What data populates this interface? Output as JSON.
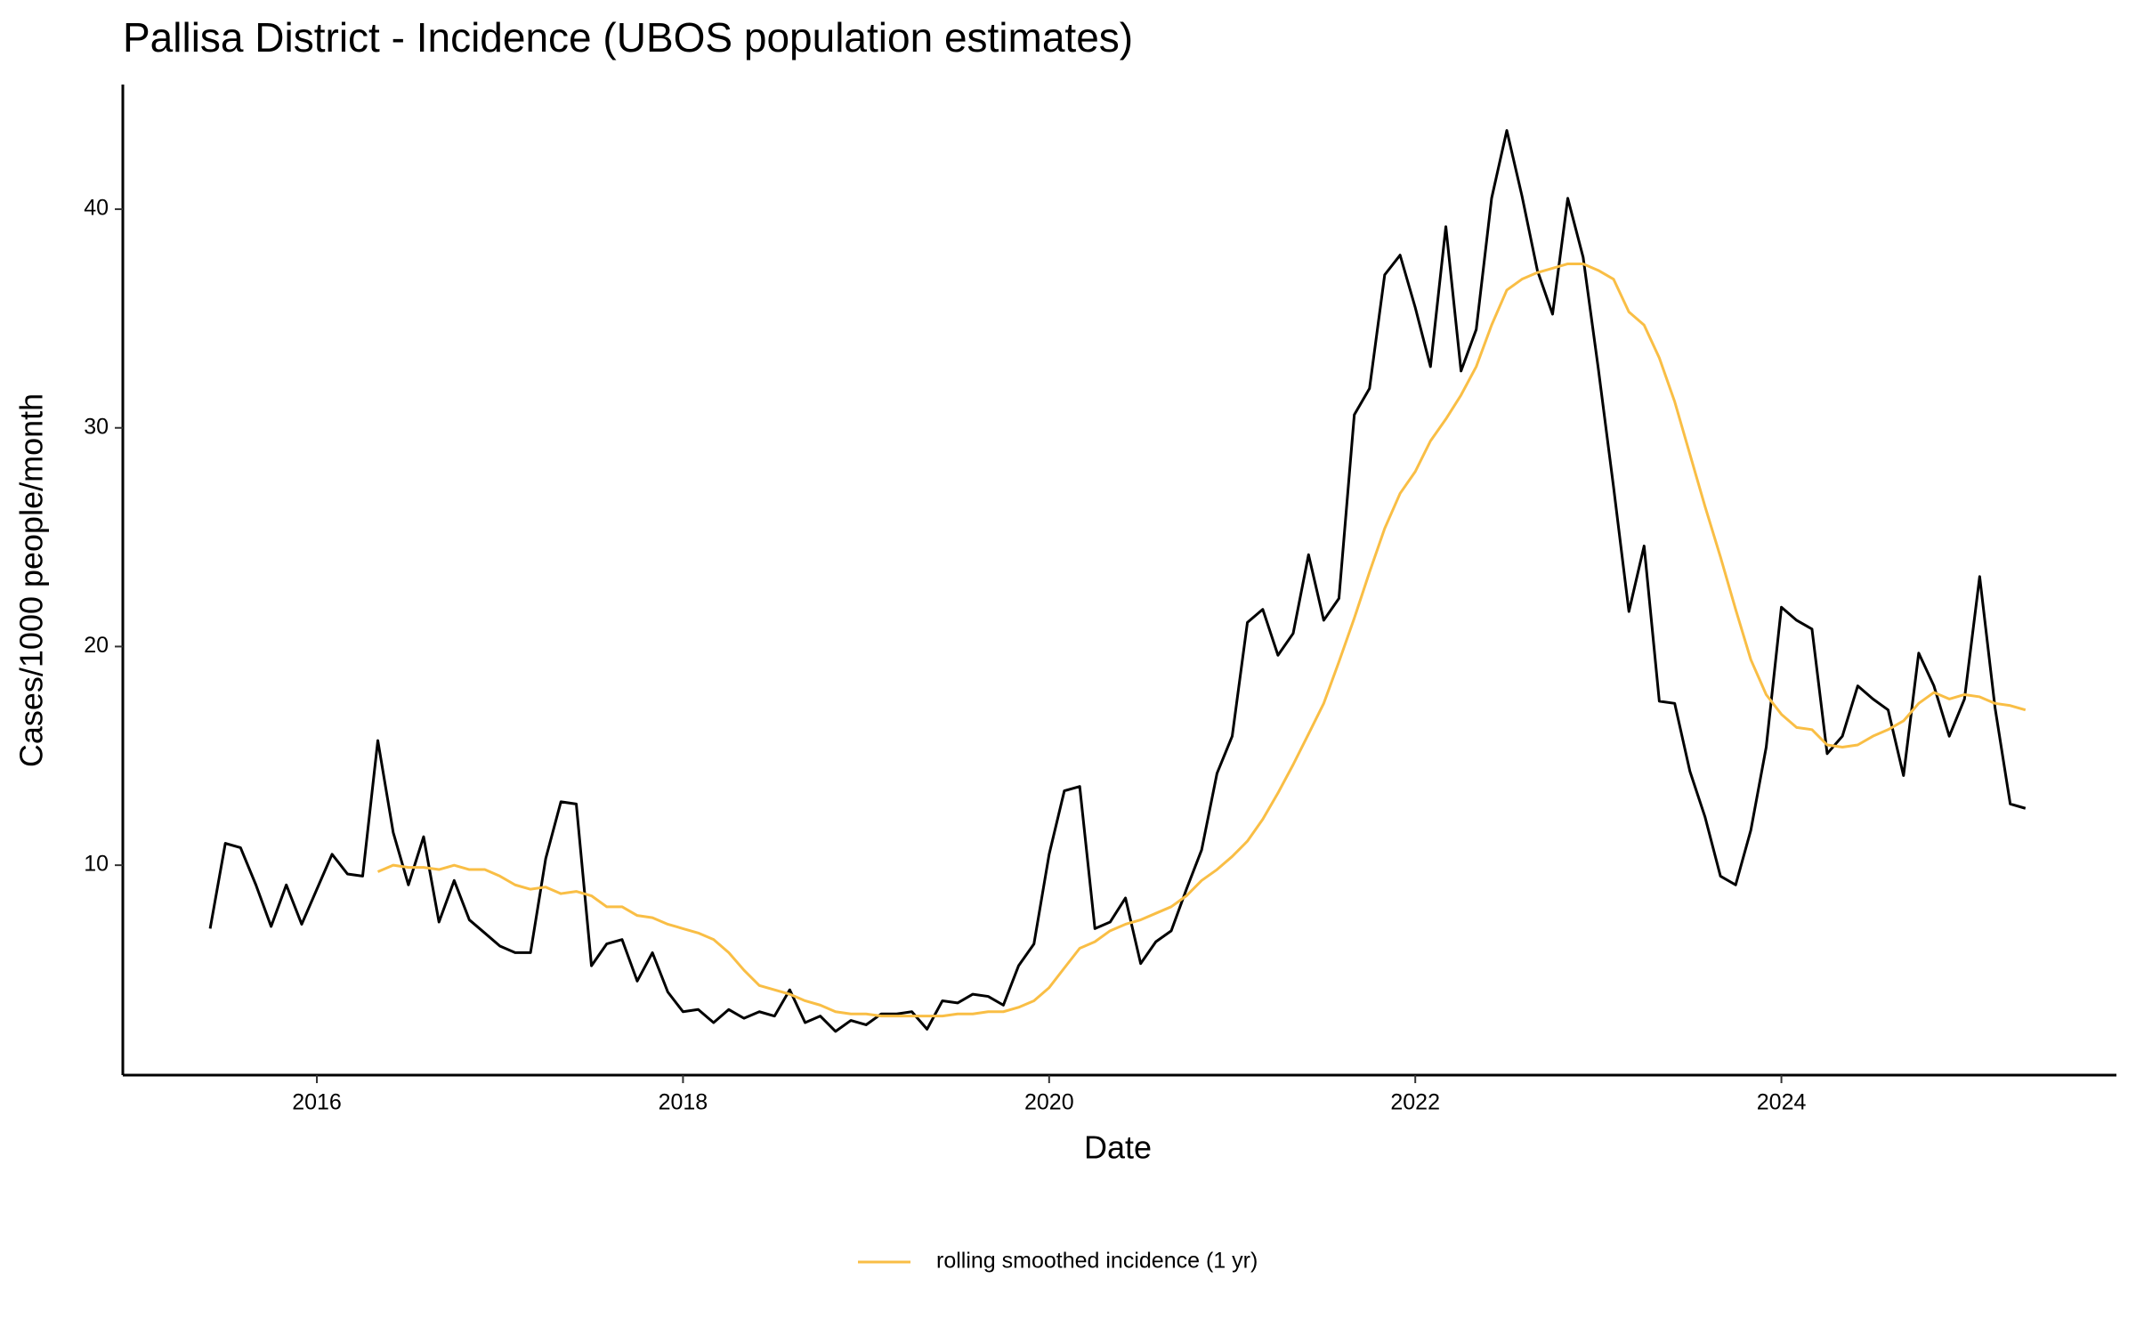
{
  "chart_data": {
    "type": "line",
    "title": "Pallisa District - Incidence (UBOS population estimates)",
    "x_label": "Date",
    "y_label": "Cases/1000 people/month",
    "x": [
      2015.417,
      2015.5,
      2015.583,
      2015.667,
      2015.75,
      2015.833,
      2015.917,
      2016,
      2016.083,
      2016.167,
      2016.25,
      2016.333,
      2016.417,
      2016.5,
      2016.583,
      2016.667,
      2016.75,
      2016.833,
      2016.917,
      2017,
      2017.083,
      2017.167,
      2017.25,
      2017.333,
      2017.417,
      2017.5,
      2017.583,
      2017.667,
      2017.75,
      2017.833,
      2017.917,
      2018,
      2018.083,
      2018.167,
      2018.25,
      2018.333,
      2018.417,
      2018.5,
      2018.583,
      2018.667,
      2018.75,
      2018.833,
      2018.917,
      2019,
      2019.083,
      2019.167,
      2019.25,
      2019.333,
      2019.417,
      2019.5,
      2019.583,
      2019.667,
      2019.75,
      2019.833,
      2019.917,
      2020,
      2020.083,
      2020.167,
      2020.25,
      2020.333,
      2020.417,
      2020.5,
      2020.583,
      2020.667,
      2020.75,
      2020.833,
      2020.917,
      2021,
      2021.083,
      2021.167,
      2021.25,
      2021.333,
      2021.417,
      2021.5,
      2021.583,
      2021.667,
      2021.75,
      2021.833,
      2021.917,
      2022,
      2022.083,
      2022.167,
      2022.25,
      2022.333,
      2022.417,
      2022.5,
      2022.583,
      2022.667,
      2022.75,
      2022.833,
      2022.917,
      2023,
      2023.083,
      2023.167,
      2023.25,
      2023.333,
      2023.417,
      2023.5,
      2023.583,
      2023.667,
      2023.75,
      2023.833,
      2023.917,
      2024,
      2024.083,
      2024.167,
      2024.25,
      2024.333,
      2024.417,
      2024.5,
      2024.583,
      2024.667,
      2024.75,
      2024.833,
      2024.917,
      2025,
      2025.083,
      2025.167,
      2025.25,
      2025.333
    ],
    "series": [
      {
        "color": "#000000",
        "values": [
          7.1,
          11.0,
          10.8,
          9.1,
          7.2,
          9.1,
          7.3,
          8.9,
          10.5,
          9.6,
          9.5,
          15.7,
          11.5,
          9.1,
          11.3,
          7.4,
          9.3,
          7.5,
          6.9,
          6.3,
          6.0,
          6.0,
          10.3,
          12.9,
          12.8,
          5.4,
          6.4,
          6.6,
          4.7,
          6.0,
          4.2,
          3.3,
          3.4,
          2.8,
          3.4,
          3.0,
          3.3,
          3.1,
          4.3,
          2.8,
          3.1,
          2.4,
          2.9,
          2.7,
          3.2,
          3.2,
          3.3,
          2.5,
          3.8,
          3.7,
          4.1,
          4.0,
          3.6,
          5.4,
          6.4,
          10.5,
          13.4,
          13.6,
          7.1,
          7.4,
          8.5,
          5.5,
          6.5,
          7.0,
          8.9,
          10.7,
          14.2,
          15.9,
          21.1,
          21.7,
          19.6,
          20.6,
          24.2,
          21.2,
          22.2,
          30.6,
          31.8,
          37.0,
          37.9,
          35.5,
          32.8,
          39.2,
          32.6,
          34.5,
          40.5,
          43.6,
          40.6,
          37.2,
          35.2,
          40.5,
          37.8,
          32.7,
          27.3,
          21.6,
          24.6,
          17.5,
          17.4,
          14.3,
          12.2,
          9.5,
          9.1,
          11.6,
          15.4,
          21.8,
          21.2,
          20.8,
          15.1,
          15.9,
          18.2,
          17.6,
          17.1,
          14.1,
          19.7,
          18.2,
          15.9,
          17.6,
          23.2,
          17.2,
          12.8,
          12.6
        ]
      },
      {
        "name": "rolling smoothed incidence (1 yr)",
        "color": "#F9BE45",
        "values": [
          null,
          null,
          null,
          null,
          null,
          null,
          null,
          null,
          null,
          null,
          null,
          9.7,
          10.0,
          9.9,
          9.9,
          9.8,
          10.0,
          9.8,
          9.8,
          9.5,
          9.1,
          8.9,
          9.0,
          8.7,
          8.8,
          8.6,
          8.1,
          8.1,
          7.7,
          7.6,
          7.3,
          7.1,
          6.9,
          6.6,
          6.0,
          5.2,
          4.5,
          4.3,
          4.1,
          3.8,
          3.6,
          3.3,
          3.2,
          3.2,
          3.1,
          3.1,
          3.1,
          3.1,
          3.1,
          3.2,
          3.2,
          3.3,
          3.3,
          3.5,
          3.8,
          4.4,
          5.3,
          6.2,
          6.5,
          7.0,
          7.3,
          7.5,
          7.8,
          8.1,
          8.6,
          9.3,
          9.8,
          10.4,
          11.1,
          12.1,
          13.3,
          14.6,
          16.0,
          17.4,
          19.3,
          21.3,
          23.4,
          25.4,
          27.0,
          28.0,
          29.4,
          30.4,
          31.5,
          32.8,
          34.7,
          36.3,
          36.8,
          37.1,
          37.3,
          37.5,
          37.5,
          37.2,
          36.8,
          35.3,
          34.7,
          33.2,
          31.2,
          28.8,
          26.4,
          24.1,
          21.7,
          19.4,
          17.8,
          16.9,
          16.3,
          16.2,
          15.5,
          15.4,
          15.5,
          15.9,
          16.2,
          16.6,
          17.4,
          17.9,
          17.6,
          17.8,
          17.7,
          17.4,
          17.3,
          17.1
        ]
      }
    ],
    "xlim": [
      2014.94,
      2025.83
    ],
    "ylim": [
      0.4,
      45.7
    ],
    "xticks": [
      2016,
      2018,
      2020,
      2022,
      2024
    ],
    "yticks": [
      10,
      20,
      30,
      40
    ],
    "grid": false,
    "legend": "bottom"
  }
}
